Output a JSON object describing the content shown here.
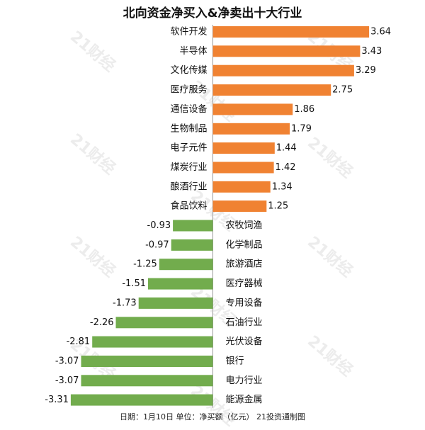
{
  "title": "北向资金净买入&净卖出十大行业",
  "footer": "日期：1月10日 单位：净买额（亿元） 21投资通制图",
  "watermark": "21财经",
  "colors": {
    "positive": "#F08232",
    "negative": "#72AC4D",
    "axis": "#999999"
  },
  "chart_data": {
    "type": "bar",
    "orientation": "horizontal",
    "title": "北向资金净买入&净卖出十大行业",
    "xlabel": "",
    "ylabel": "",
    "categories": [
      "软件开发",
      "半导体",
      "文化传媒",
      "医疗服务",
      "通信设备",
      "生物制品",
      "电子元件",
      "煤炭行业",
      "酿酒行业",
      "食品饮料",
      "农牧饲渔",
      "化学制品",
      "旅游酒店",
      "医疗器械",
      "专用设备",
      "石油行业",
      "光伏设备",
      "银行",
      "电力行业",
      "能源金属"
    ],
    "values": [
      3.64,
      3.43,
      3.29,
      2.75,
      1.86,
      1.79,
      1.44,
      1.42,
      1.34,
      1.25,
      -0.93,
      -0.97,
      -1.25,
      -1.51,
      -1.73,
      -2.26,
      -2.81,
      -3.07,
      -3.07,
      -3.31
    ],
    "value_labels": [
      "3.64",
      "3.43",
      "3.29",
      "2.75",
      "1.86",
      "1.79",
      "1.44",
      "1.42",
      "1.34",
      "1.25",
      "-0.93",
      "-0.97",
      "-1.25",
      "-1.51",
      "-1.73",
      "-2.26",
      "-2.81",
      "-3.07",
      "-3.07",
      "-3.31"
    ],
    "xlim": [
      -3.31,
      3.64
    ],
    "grid": false,
    "legend": "none"
  }
}
